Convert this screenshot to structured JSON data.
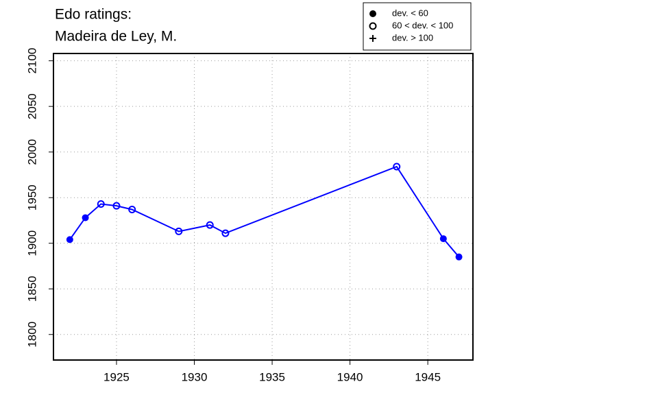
{
  "chart_data": {
    "type": "line",
    "title": "Edo ratings:",
    "subtitle": "Madeira de Ley, M.",
    "x": [
      1922,
      1923,
      1924,
      1925,
      1926,
      1929,
      1931,
      1932,
      1943,
      1946,
      1947
    ],
    "series": [
      {
        "color": "#0000ff",
        "values": [
          1904,
          1928,
          1943,
          1941,
          1937,
          1913,
          1920,
          1911,
          1984,
          1905,
          1885
        ],
        "point_styles": [
          "filled",
          "filled",
          "open",
          "open",
          "open",
          "open",
          "open",
          "open",
          "open",
          "filled",
          "filled"
        ]
      }
    ],
    "xlim": [
      1920.95,
      1947.9
    ],
    "ylim": [
      1772,
      2108
    ],
    "xticks": [
      1925,
      1930,
      1935,
      1940,
      1945
    ],
    "yticks": [
      1800,
      1850,
      1900,
      1950,
      2000,
      2050,
      2100
    ],
    "grid": true,
    "legend": {
      "position": "top-right",
      "entries": [
        {
          "label": "dev. < 60",
          "symbol": "filled"
        },
        {
          "label": "60 < dev. < 100",
          "symbol": "open"
        },
        {
          "label": "dev. > 100",
          "symbol": "plus"
        }
      ]
    }
  }
}
